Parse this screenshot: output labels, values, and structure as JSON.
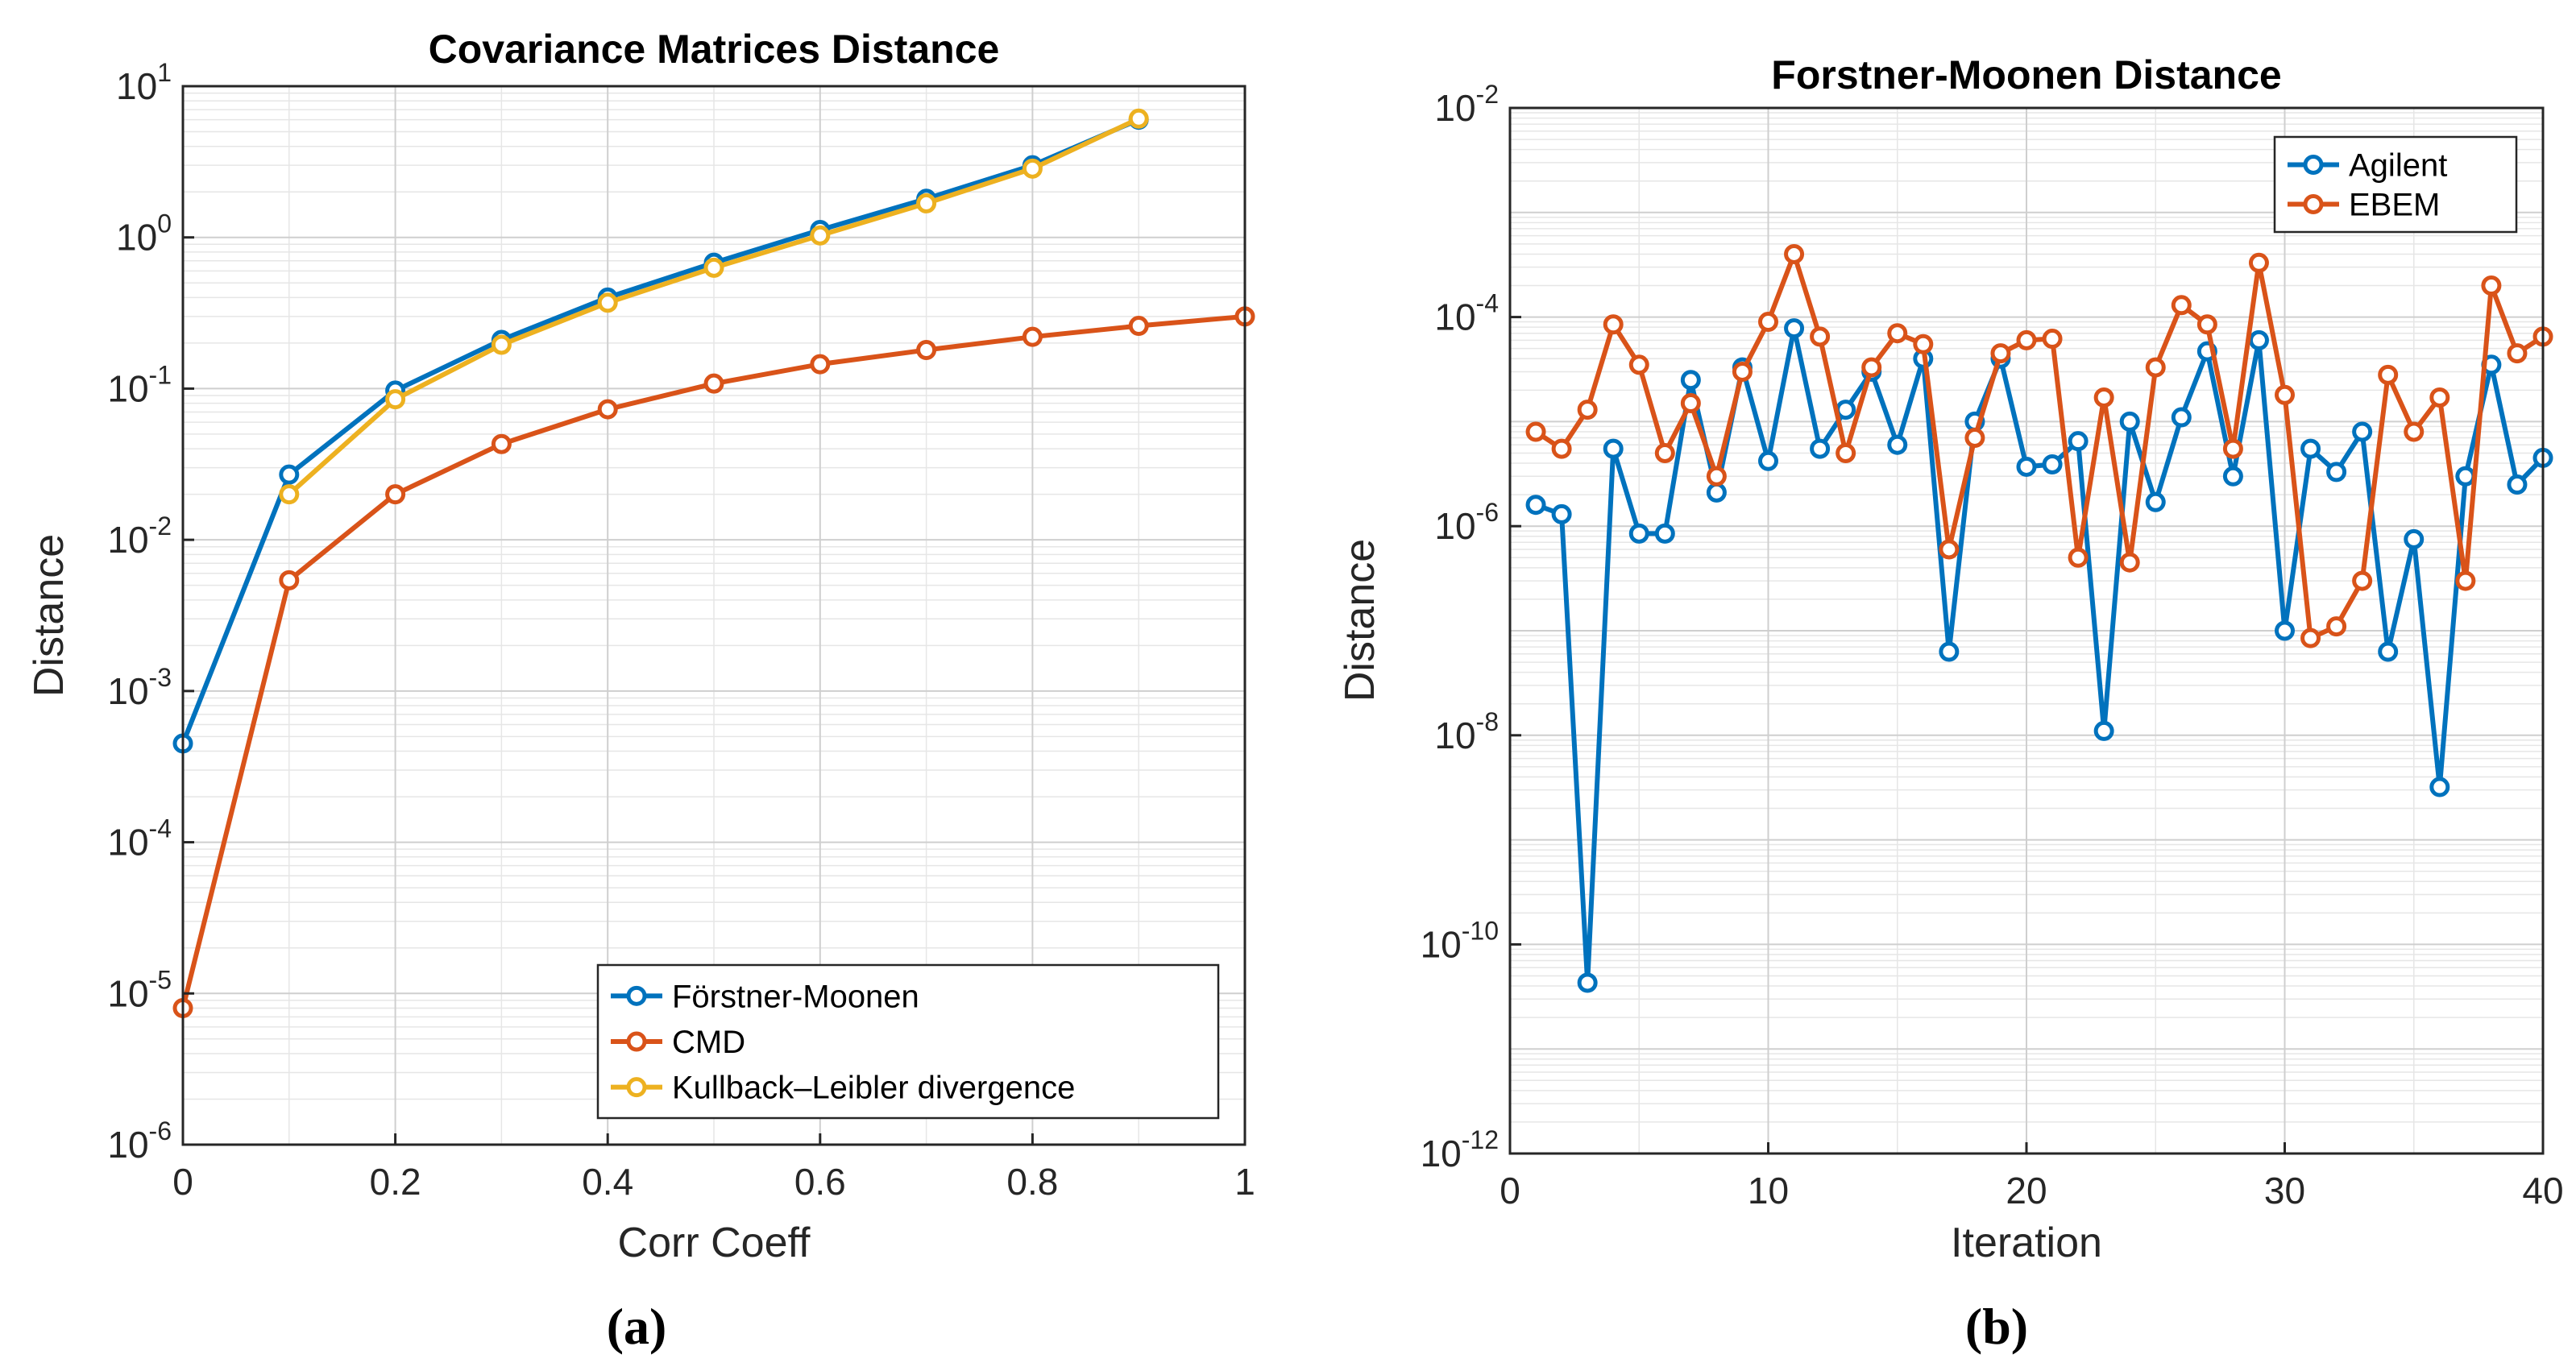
{
  "chart_data": [
    {
      "type": "line",
      "panel": "(a)",
      "title": "Covariance Matrices Distance",
      "xlabel": "Corr Coeff",
      "ylabel": "Distance",
      "xscale": "linear",
      "yscale": "log",
      "xlim": [
        0,
        1
      ],
      "ylim_exp": [
        -6,
        1
      ],
      "xticks": [
        "0",
        "0.2",
        "0.4",
        "0.6",
        "0.8",
        "1"
      ],
      "xtick_values": [
        0,
        0.2,
        0.4,
        0.6,
        0.8,
        1
      ],
      "yticks_base": "10",
      "ytick_exponents": [
        "-6",
        "-5",
        "-4",
        "-3",
        "-2",
        "-1",
        "0",
        "1"
      ],
      "grid": true,
      "legend_position": "bottom-right",
      "series": [
        {
          "name": "Förstner-Moonen",
          "color": "#0072BD",
          "x": [
            0,
            0.1,
            0.2,
            0.3,
            0.4,
            0.5,
            0.6,
            0.7,
            0.8,
            0.9
          ],
          "y": [
            0.00045,
            0.027,
            0.097,
            0.21,
            0.4,
            0.68,
            1.12,
            1.8,
            3.0,
            6.0
          ]
        },
        {
          "name": "CMD",
          "color": "#D95319",
          "x": [
            0,
            0.1,
            0.2,
            0.3,
            0.4,
            0.5,
            0.6,
            0.7,
            0.8,
            0.9,
            1.0
          ],
          "y": [
            8e-06,
            0.0054,
            0.02,
            0.043,
            0.073,
            0.108,
            0.145,
            0.18,
            0.22,
            0.26,
            0.3
          ]
        },
        {
          "name": "Kullback–Leibler divergence",
          "color": "#EDB120",
          "x": [
            0.1,
            0.2,
            0.3,
            0.4,
            0.5,
            0.6,
            0.7,
            0.8,
            0.9
          ],
          "y": [
            0.02,
            0.085,
            0.195,
            0.37,
            0.63,
            1.03,
            1.68,
            2.85,
            6.1
          ]
        }
      ]
    },
    {
      "type": "line",
      "panel": "(b)",
      "title": "Forstner-Moonen Distance",
      "xlabel": "Iteration",
      "ylabel": "Distance",
      "xscale": "linear",
      "yscale": "log",
      "xlim": [
        0,
        40
      ],
      "ylim_exp": [
        -12,
        -2
      ],
      "xticks": [
        "0",
        "10",
        "20",
        "30",
        "40"
      ],
      "xtick_values": [
        0,
        10,
        20,
        30,
        40
      ],
      "yticks_base": "10",
      "ytick_exponents": [
        "-12",
        "-10",
        "-8",
        "-6",
        "-4",
        "-2"
      ],
      "grid": true,
      "legend_position": "top-right",
      "series": [
        {
          "name": "Agilent",
          "color": "#0072BD",
          "x": [
            1,
            2,
            3,
            4,
            5,
            6,
            7,
            8,
            9,
            10,
            11,
            12,
            13,
            14,
            15,
            16,
            17,
            18,
            19,
            20,
            21,
            22,
            23,
            24,
            25,
            26,
            27,
            28,
            29,
            30,
            31,
            32,
            33,
            34,
            35,
            36,
            37,
            38,
            39,
            40
          ],
          "y": [
            1.6e-06,
            1.3e-06,
            4.3e-11,
            5.5e-06,
            8.5e-07,
            8.5e-07,
            2.5e-05,
            2.1e-06,
            3.3e-05,
            4.2e-06,
            7.8e-05,
            5.5e-06,
            1.3e-05,
            3e-05,
            6e-06,
            4e-05,
            6.3e-08,
            1e-05,
            4e-05,
            3.7e-06,
            3.9e-06,
            6.5e-06,
            1.1e-08,
            1e-05,
            1.7e-06,
            1.1e-05,
            4.7e-05,
            3e-06,
            6e-05,
            1e-07,
            5.5e-06,
            3.3e-06,
            8e-06,
            6.3e-08,
            7.5e-07,
            3.2e-09,
            3e-06,
            3.5e-05,
            2.5e-06,
            4.5e-06
          ]
        },
        {
          "name": "EBEM",
          "color": "#D95319",
          "x": [
            1,
            2,
            3,
            4,
            5,
            6,
            7,
            8,
            9,
            10,
            11,
            12,
            13,
            14,
            15,
            16,
            17,
            18,
            19,
            20,
            21,
            22,
            23,
            24,
            25,
            26,
            27,
            28,
            29,
            30,
            31,
            32,
            33,
            34,
            35,
            36,
            37,
            38,
            39,
            40
          ],
          "y": [
            8e-06,
            5.5e-06,
            1.3e-05,
            8.5e-05,
            3.5e-05,
            5e-06,
            1.5e-05,
            3e-06,
            3e-05,
            9e-05,
            0.0004,
            6.5e-05,
            5e-06,
            3.3e-05,
            7e-05,
            5.5e-05,
            6e-07,
            7e-06,
            4.5e-05,
            6e-05,
            6.2e-05,
            5e-07,
            1.7e-05,
            4.5e-07,
            3.3e-05,
            0.00013,
            8.5e-05,
            5.5e-06,
            0.00033,
            1.8e-05,
            8.5e-08,
            1.1e-07,
            3e-07,
            2.8e-05,
            8e-06,
            1.7e-05,
            3e-07,
            0.0002,
            4.5e-05,
            6.5e-05
          ]
        }
      ]
    }
  ]
}
